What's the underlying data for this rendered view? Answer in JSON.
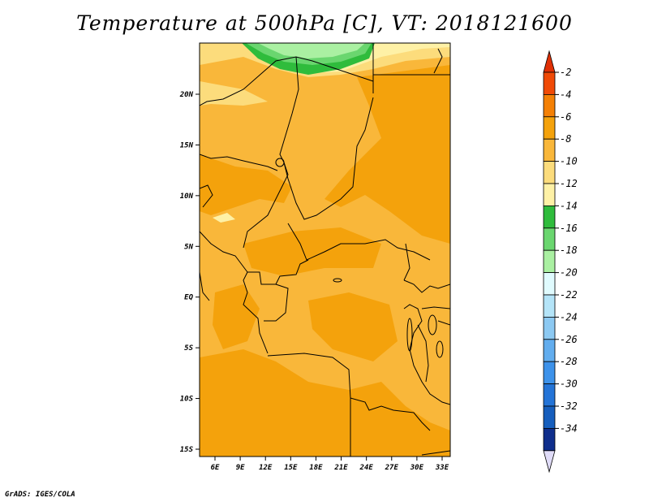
{
  "title": "Temperature at 500hPa [C], VT: 2018121600",
  "credit": "GrADS: IGES/COLA",
  "map": {
    "lon_labels": [
      "6E",
      "9E",
      "12E",
      "15E",
      "18E",
      "21E",
      "24E",
      "27E",
      "30E",
      "33E"
    ],
    "lat_labels": [
      "20N",
      "15N",
      "10N",
      "5N",
      "EQ",
      "5S",
      "10S",
      "15S"
    ],
    "fill_colors": {
      "-4_to_-6": "#f4a20c",
      "-6_to_-8": "#f9b73a",
      "-8_to_-10": "#fcdc7c",
      "-10_to_-12": "#fef1a6",
      "-12_to_-14": "#2fbc3c",
      "-14_to_-16": "#6ad66f",
      "-16_to_-18": "#aaf0a2"
    }
  },
  "colorbar": {
    "labels": [
      "-2",
      "-4",
      "-6",
      "-8",
      "-10",
      "-12",
      "-14",
      "-16",
      "-18",
      "-20",
      "-22",
      "-24",
      "-26",
      "-28",
      "-30",
      "-32",
      "-34"
    ],
    "colors": [
      "#f04a06",
      "#f48005",
      "#f4a20c",
      "#f9b73a",
      "#fcdc7c",
      "#fef1a6",
      "#2fbc3c",
      "#6ad66f",
      "#aaf0a2",
      "#e0fbfe",
      "#b4e4f8",
      "#8cc9f2",
      "#62adee",
      "#3d92ea",
      "#2474d7",
      "#165ebd",
      "#0f2e8c",
      "#0b1770"
    ],
    "top_arrow_color": "#e03005",
    "bottom_arrow_color": "#e0dcf8"
  }
}
